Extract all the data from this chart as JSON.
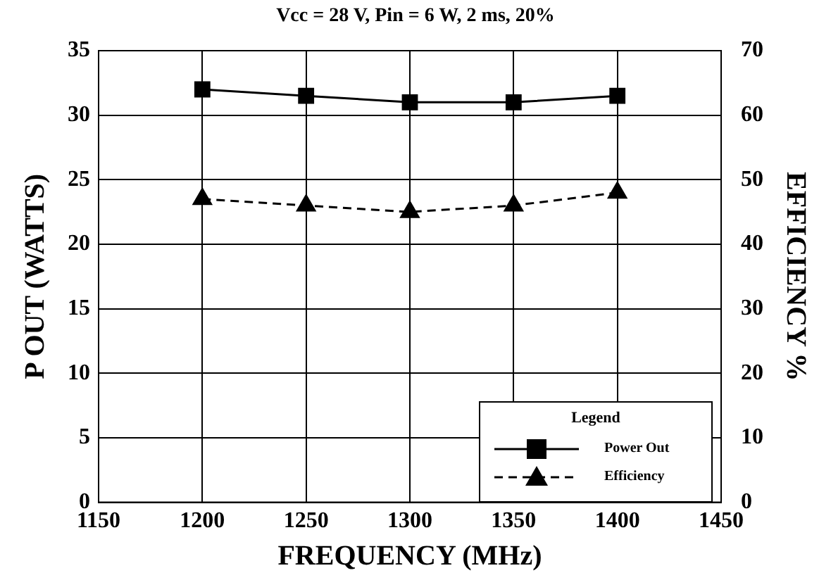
{
  "chart_data": {
    "type": "line",
    "title": "Vcc = 28 V, Pin = 6 W,  2 ms, 20%",
    "xlabel": "FREQUENCY (MHz)",
    "ylabel": "P OUT (WATTS)",
    "y2label": "EFFICIENCY %",
    "x": [
      1200,
      1250,
      1300,
      1350,
      1400
    ],
    "series": [
      {
        "name": "Power Out",
        "color": "#000000",
        "values": [
          32,
          31.5,
          31,
          31,
          31.5
        ],
        "marker": "square",
        "line_style": "solid"
      },
      {
        "name": "Efficiency",
        "color": "#000000",
        "values": [
          47,
          46,
          45,
          46,
          48
        ],
        "marker": "triangle",
        "line_style": "dashed",
        "axis": "y2"
      }
    ],
    "xlim": [
      1150,
      1450
    ],
    "xticks": [
      1150,
      1200,
      1250,
      1300,
      1350,
      1400,
      1450
    ],
    "ylim": [
      0,
      35
    ],
    "yticks": [
      0,
      5,
      10,
      15,
      20,
      25,
      30,
      35
    ],
    "y2lim": [
      0,
      70
    ],
    "y2ticks": [
      0,
      10,
      20,
      30,
      40,
      50,
      60,
      70
    ],
    "grid": true,
    "legend": "bottom right",
    "legend_title": "Legend"
  }
}
